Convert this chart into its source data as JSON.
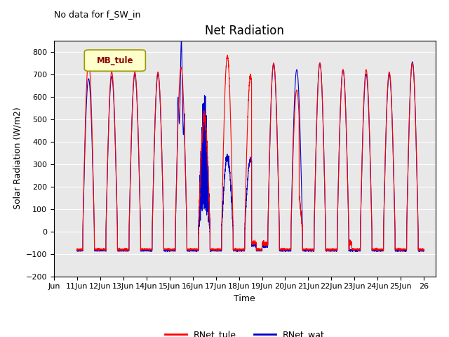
{
  "title": "Net Radiation",
  "xlabel": "Time",
  "ylabel": "Solar Radiation (W/m2)",
  "annotation": "No data for f_SW_in",
  "legend_box_label": "MB_tule",
  "ylim": [
    -200,
    850
  ],
  "yticks": [
    -200,
    -100,
    0,
    100,
    200,
    300,
    400,
    500,
    600,
    700,
    800
  ],
  "line_red_color": "#ff0000",
  "line_blue_color": "#0000cc",
  "line_red_label": "RNet_tule",
  "line_blue_label": "RNet_wat",
  "background_color": "#e8e8e8",
  "grid_color": "white",
  "title_fontsize": 12,
  "axis_label_fontsize": 9,
  "tick_fontsize": 8,
  "legend_fontsize": 9,
  "annotation_fontsize": 9,
  "red_peaks": [
    760,
    710,
    710,
    710,
    730,
    600,
    780,
    690,
    750,
    630,
    750,
    720,
    720,
    710,
    750
  ],
  "blue_peaks": [
    680,
    690,
    700,
    700,
    700,
    600,
    330,
    320,
    745,
    720,
    750,
    720,
    700,
    700,
    755
  ],
  "red_night": -80,
  "blue_night": -85
}
